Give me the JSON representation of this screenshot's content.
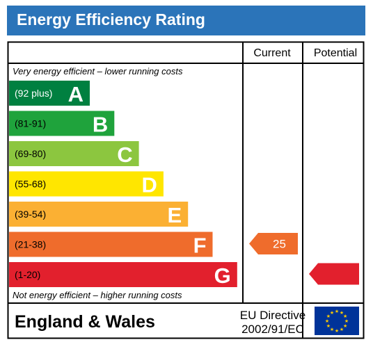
{
  "title": "Energy Efficiency Rating",
  "columns": {
    "current": "Current",
    "potential": "Potential"
  },
  "top_note": "Very energy efficient – lower running costs",
  "bottom_note": "Not energy efficient – higher running costs",
  "footer": {
    "region": "England & Wales",
    "directive_line1": "EU Directive",
    "directive_line2": "2002/91/EC"
  },
  "chart_data": {
    "type": "bar",
    "title": "Energy Efficiency Rating",
    "bands": [
      {
        "letter": "A",
        "range": "(92 plus)",
        "min": 92,
        "max": 100,
        "color": "#008040"
      },
      {
        "letter": "B",
        "range": "(81-91)",
        "min": 81,
        "max": 91,
        "color": "#1fa33c"
      },
      {
        "letter": "C",
        "range": "(69-80)",
        "min": 69,
        "max": 80,
        "color": "#8cc63f"
      },
      {
        "letter": "D",
        "range": "(55-68)",
        "min": 55,
        "max": 68,
        "color": "#ffe600"
      },
      {
        "letter": "E",
        "range": "(39-54)",
        "min": 39,
        "max": 54,
        "color": "#fbb033"
      },
      {
        "letter": "F",
        "range": "(21-38)",
        "min": 21,
        "max": 38,
        "color": "#ef6c2c"
      },
      {
        "letter": "G",
        "range": "(1-20)",
        "min": 1,
        "max": 20,
        "color": "#e2202d"
      }
    ],
    "current": {
      "value": 25,
      "label": "25",
      "band": "F",
      "color": "#ef6c2c"
    },
    "potential": {
      "value": null,
      "label": "",
      "band": "G",
      "color": "#e2202d"
    }
  }
}
